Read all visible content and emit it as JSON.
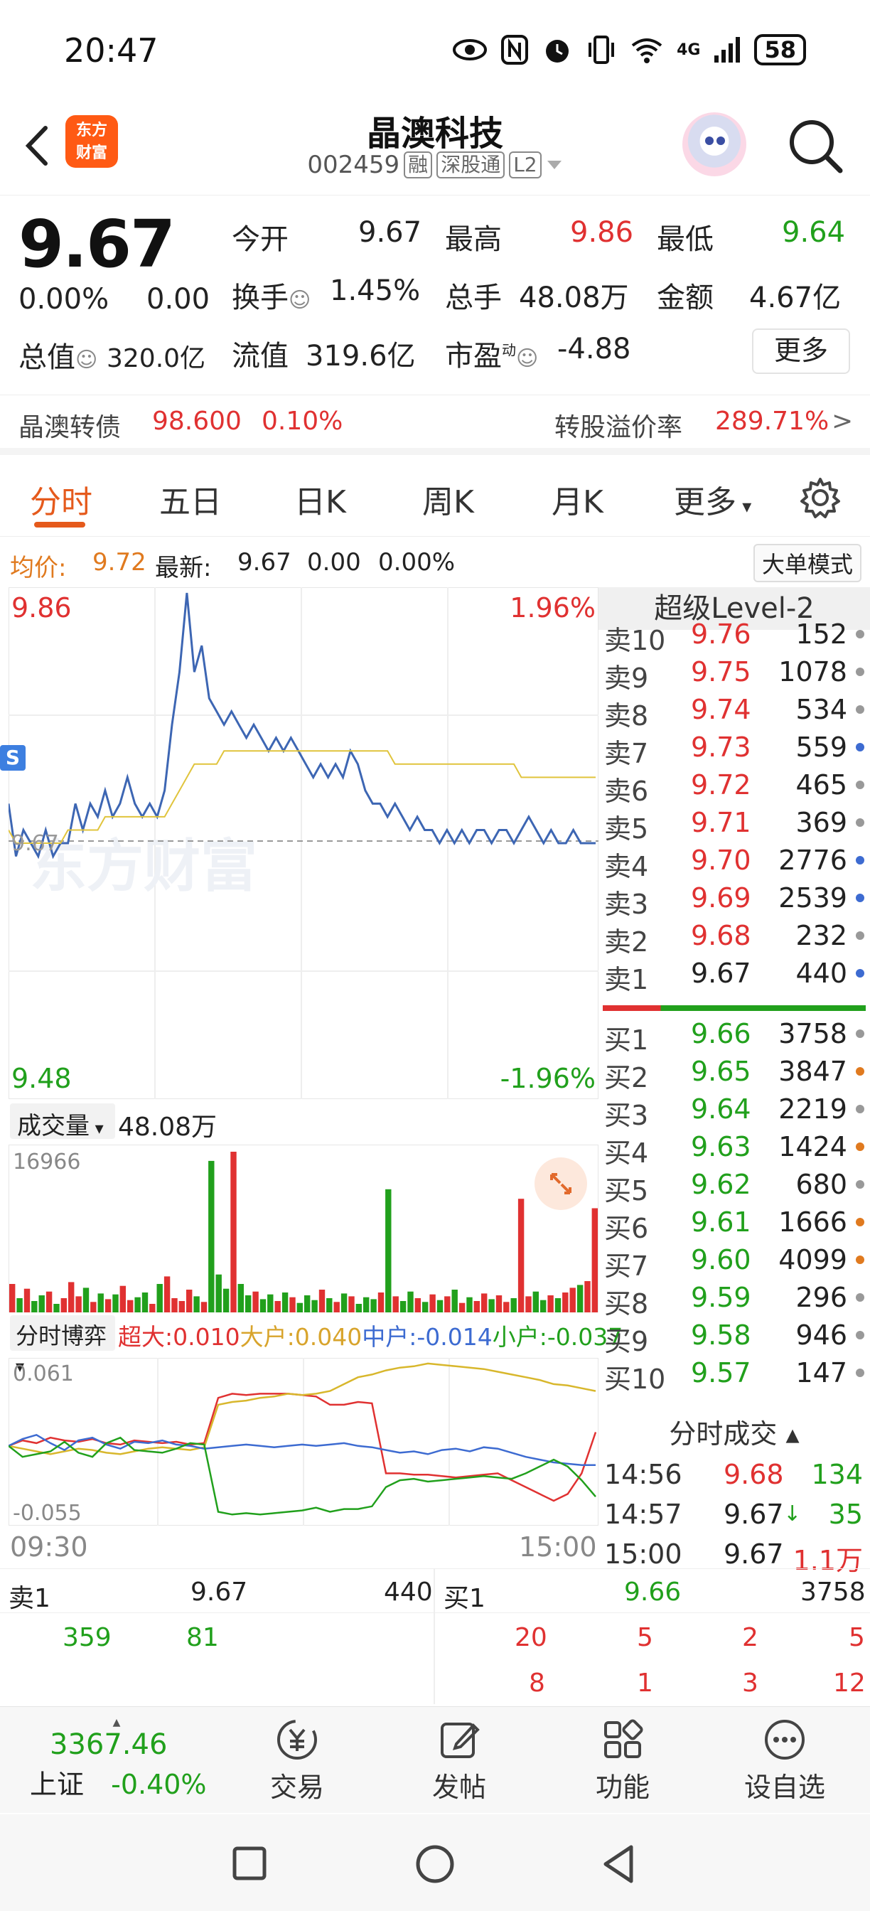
{
  "status_bar": {
    "time": "20:47",
    "network": "4G",
    "battery": "58"
  },
  "header": {
    "logo_text_line1": "东方",
    "logo_text_line2": "财富",
    "stock_name": "晶澳科技",
    "stock_code": "002459",
    "tags": [
      "融",
      "深股通",
      "L2"
    ]
  },
  "quote": {
    "price": "9.67",
    "change_pct": "0.00%",
    "change": "0.00",
    "open_label": "今开",
    "open": "9.67",
    "high_label": "最高",
    "high": "9.86",
    "low_label": "最低",
    "low": "9.64",
    "turnover_label": "换手",
    "turnover": "1.45%",
    "volume_label": "总手",
    "volume": "48.08万",
    "amount_label": "金额",
    "amount": "4.67亿",
    "mktcap_label": "总值",
    "mktcap": "320.0亿",
    "float_label": "流值",
    "float": "319.6亿",
    "pe_label": "市盈",
    "pe_sup": "动",
    "pe": "-4.88",
    "more_button": "更多"
  },
  "bond": {
    "name": "晶澳转债",
    "price": "98.600",
    "pct": "0.10%",
    "premium_label": "转股溢价率",
    "premium": "289.71%",
    "arrow": ">"
  },
  "tabs": [
    "分时",
    "五日",
    "日K",
    "周K",
    "月K",
    "更多"
  ],
  "info_row": {
    "avg_label": "均价:",
    "avg": "9.72",
    "latest_label": "最新:",
    "latest": "9.67",
    "chg": "0.00",
    "chg_pct": "0.00%",
    "big_order_button": "大单模式"
  },
  "chart_data": [
    {
      "type": "line",
      "title": "",
      "price_top": "9.86",
      "price_bottom": "9.48",
      "pct_top": "1.96%",
      "pct_bottom": "-1.96%",
      "prev_close": "9.67",
      "s_marker": "S",
      "ylim": [
        9.48,
        9.86
      ],
      "x_labels": [
        "09:30",
        "15:00"
      ],
      "series": [
        {
          "color": "#3d66b3",
          "values": [
            9.7,
            9.66,
            9.68,
            9.67,
            9.66,
            9.68,
            9.66,
            9.67,
            9.67,
            9.7,
            9.68,
            9.7,
            9.69,
            9.71,
            9.69,
            9.7,
            9.72,
            9.7,
            9.69,
            9.7,
            9.69,
            9.71,
            9.76,
            9.8,
            9.86,
            9.8,
            9.82,
            9.78,
            9.77,
            9.76,
            9.77,
            9.76,
            9.75,
            9.76,
            9.75,
            9.74,
            9.75,
            9.74,
            9.75,
            9.74,
            9.73,
            9.72,
            9.73,
            9.72,
            9.73,
            9.72,
            9.74,
            9.73,
            9.71,
            9.7,
            9.7,
            9.69,
            9.7,
            9.69,
            9.68,
            9.69,
            9.68,
            9.68,
            9.67,
            9.68,
            9.67,
            9.68,
            9.67,
            9.68,
            9.68,
            9.67,
            9.68,
            9.68,
            9.67,
            9.68,
            9.69,
            9.68,
            9.67,
            9.68,
            9.67,
            9.67,
            9.68,
            9.67,
            9.67,
            9.67
          ]
        },
        {
          "color": "#e0c43c",
          "values": [
            9.68,
            9.67,
            9.67,
            9.67,
            9.67,
            9.67,
            9.67,
            9.67,
            9.68,
            9.68,
            9.68,
            9.68,
            9.68,
            9.69,
            9.69,
            9.69,
            9.69,
            9.69,
            9.69,
            9.69,
            9.69,
            9.69,
            9.7,
            9.71,
            9.72,
            9.73,
            9.73,
            9.73,
            9.73,
            9.74,
            9.74,
            9.74,
            9.74,
            9.74,
            9.74,
            9.74,
            9.74,
            9.74,
            9.74,
            9.74,
            9.74,
            9.74,
            9.74,
            9.74,
            9.74,
            9.74,
            9.74,
            9.74,
            9.74,
            9.74,
            9.74,
            9.74,
            9.73,
            9.73,
            9.73,
            9.73,
            9.73,
            9.73,
            9.73,
            9.73,
            9.73,
            9.73,
            9.73,
            9.73,
            9.73,
            9.73,
            9.73,
            9.73,
            9.73,
            9.72,
            9.72,
            9.72,
            9.72,
            9.72,
            9.72,
            9.72,
            9.72,
            9.72,
            9.72,
            9.72
          ]
        }
      ]
    },
    {
      "type": "bar",
      "title": "成交量",
      "total": "48.08万",
      "ymax_label": "16966",
      "ylim": [
        0,
        16966
      ],
      "values": [
        3000,
        1500,
        2500,
        1200,
        1800,
        2200,
        900,
        1500,
        3200,
        1700,
        2600,
        1100,
        2000,
        1400,
        1900,
        2800,
        1300,
        1600,
        2100,
        900,
        3000,
        3800,
        1500,
        1200,
        2400,
        1700,
        1100,
        16000,
        4000,
        2500,
        16966,
        3000,
        1800,
        2200,
        1400,
        1900,
        1200,
        2100,
        1600,
        1000,
        1800,
        1300,
        2400,
        1500,
        1100,
        2000,
        1700,
        900,
        1600,
        1400,
        2100,
        13000,
        1700,
        1200,
        2200,
        1500,
        1100,
        1900,
        1300,
        1700,
        2400,
        1000,
        1600,
        1200,
        2000,
        1400,
        1800,
        1100,
        1500,
        12000,
        1700,
        2200,
        1300,
        1800,
        1500,
        2100,
        2600,
        2900,
        3300,
        11000
      ],
      "colors_rule": "red_up_green_down"
    },
    {
      "type": "line",
      "title": "分时博弈",
      "ymax_label": "0.061",
      "ymin_label": "-0.055",
      "ylim": [
        -0.055,
        0.061
      ],
      "series": [
        {
          "name": "超大",
          "value": "0.010",
          "color": "#e03131",
          "values": [
            0.0,
            0.004,
            0.002,
            0.006,
            0.004,
            0.003,
            0.005,
            0.002,
            0.001,
            0.004,
            0.003,
            0.002,
            0.003,
            0.001,
            0.002,
            0.035,
            0.038,
            0.037,
            0.038,
            0.038,
            0.038,
            0.037,
            0.036,
            0.03,
            0.03,
            0.032,
            0.031,
            -0.02,
            -0.02,
            -0.021,
            -0.021,
            -0.022,
            -0.023,
            -0.022,
            -0.021,
            -0.02,
            -0.025,
            -0.03,
            -0.035,
            -0.04,
            -0.035,
            -0.02,
            0.01
          ]
        },
        {
          "name": "大户",
          "value": "0.040",
          "color": "#d8b72c",
          "values": [
            0.0,
            -0.002,
            -0.004,
            -0.006,
            -0.004,
            -0.002,
            -0.003,
            -0.005,
            -0.006,
            -0.004,
            -0.002,
            -0.001,
            -0.002,
            -0.003,
            -0.001,
            0.03,
            0.032,
            0.033,
            0.035,
            0.036,
            0.038,
            0.037,
            0.038,
            0.04,
            0.045,
            0.05,
            0.052,
            0.055,
            0.057,
            0.058,
            0.06,
            0.059,
            0.058,
            0.057,
            0.056,
            0.054,
            0.052,
            0.05,
            0.048,
            0.045,
            0.044,
            0.042,
            0.04
          ]
        },
        {
          "name": "中户",
          "value": "-0.014",
          "color": "#3d6bd1",
          "values": [
            0.0,
            0.005,
            0.008,
            0.002,
            -0.003,
            0.004,
            0.006,
            0.001,
            -0.002,
            0.003,
            0.002,
            0.004,
            0.001,
            0.0,
            -0.002,
            -0.001,
            0.0,
            0.001,
            0.0,
            -0.001,
            0.0,
            0.001,
            0.0,
            0.001,
            0.002,
            0.0,
            -0.001,
            -0.003,
            -0.005,
            -0.004,
            -0.006,
            -0.003,
            -0.002,
            -0.004,
            -0.001,
            -0.002,
            -0.005,
            -0.008,
            -0.01,
            -0.012,
            -0.013,
            -0.014,
            -0.014
          ]
        },
        {
          "name": "小户",
          "value": "-0.037",
          "color": "#21a01c",
          "values": [
            0.0,
            -0.008,
            -0.006,
            -0.004,
            0.003,
            -0.005,
            -0.008,
            0.002,
            0.006,
            -0.003,
            -0.004,
            -0.005,
            -0.002,
            0.002,
            0.001,
            -0.048,
            -0.05,
            -0.049,
            -0.05,
            -0.049,
            -0.048,
            -0.047,
            -0.045,
            -0.048,
            -0.046,
            -0.046,
            -0.044,
            -0.03,
            -0.025,
            -0.024,
            -0.026,
            -0.025,
            -0.024,
            -0.023,
            -0.022,
            -0.023,
            -0.024,
            -0.02,
            -0.015,
            -0.01,
            -0.015,
            -0.025,
            -0.037
          ]
        }
      ]
    }
  ],
  "volume_label": "成交量",
  "game_label": "分时博弈",
  "level2": {
    "title": "超级Level-2",
    "sells": [
      {
        "label": "卖10",
        "price": "9.76",
        "vol": "152",
        "dot": "#999"
      },
      {
        "label": "卖9",
        "price": "9.75",
        "vol": "1078",
        "dot": "#999"
      },
      {
        "label": "卖8",
        "price": "9.74",
        "vol": "534",
        "dot": "#999"
      },
      {
        "label": "卖7",
        "price": "9.73",
        "vol": "559",
        "dot": "#3d6bd1"
      },
      {
        "label": "卖6",
        "price": "9.72",
        "vol": "465",
        "dot": "#999"
      },
      {
        "label": "卖5",
        "price": "9.71",
        "vol": "369",
        "dot": "#999"
      },
      {
        "label": "卖4",
        "price": "9.70",
        "vol": "2776",
        "dot": "#3d6bd1"
      },
      {
        "label": "卖3",
        "price": "9.69",
        "vol": "2539",
        "dot": "#3d6bd1"
      },
      {
        "label": "卖2",
        "price": "9.68",
        "vol": "232",
        "dot": "#999"
      },
      {
        "label": "卖1",
        "price": "9.67",
        "vol": "440",
        "dot": "#3d6bd1"
      }
    ],
    "buys": [
      {
        "label": "买1",
        "price": "9.66",
        "vol": "3758",
        "dot": "#999"
      },
      {
        "label": "买2",
        "price": "9.65",
        "vol": "3847",
        "dot": "#e07a1f"
      },
      {
        "label": "买3",
        "price": "9.64",
        "vol": "2219",
        "dot": "#999"
      },
      {
        "label": "买4",
        "price": "9.63",
        "vol": "1424",
        "dot": "#e07a1f"
      },
      {
        "label": "买5",
        "price": "9.62",
        "vol": "680",
        "dot": "#999"
      },
      {
        "label": "买6",
        "price": "9.61",
        "vol": "1666",
        "dot": "#e07a1f"
      },
      {
        "label": "买7",
        "price": "9.60",
        "vol": "4099",
        "dot": "#e07a1f"
      },
      {
        "label": "买8",
        "price": "9.59",
        "vol": "296",
        "dot": "#999"
      },
      {
        "label": "买9",
        "price": "9.58",
        "vol": "946",
        "dot": "#999"
      },
      {
        "label": "买10",
        "price": "9.57",
        "vol": "147",
        "dot": "#999"
      }
    ],
    "ticks_title": "分时成交",
    "ticks": [
      {
        "time": "14:56",
        "price": "9.68",
        "vol": "134",
        "arrow": ""
      },
      {
        "time": "14:57",
        "price": "9.67",
        "vol": "35",
        "arrow": "↓"
      },
      {
        "time": "15:00",
        "price": "9.67",
        "vol": "1.1万",
        "arrow": ""
      }
    ]
  },
  "orderbook": {
    "sell_label": "卖1",
    "sell_price": "9.67",
    "sell_vol": "440",
    "buy_label": "买1",
    "buy_price": "9.66",
    "buy_vol": "3758",
    "sell_queue": [
      "359",
      "81"
    ],
    "buy_queue_row1": [
      "20",
      "5",
      "2",
      "5"
    ],
    "buy_queue_row2": [
      "8",
      "1",
      "3",
      "12"
    ]
  },
  "bottom_nav": {
    "index_value": "3367.46",
    "index_name": "上证",
    "index_pct": "-0.40%",
    "items": [
      "交易",
      "发帖",
      "功能",
      "设自选"
    ]
  },
  "watermark": "东方财富"
}
